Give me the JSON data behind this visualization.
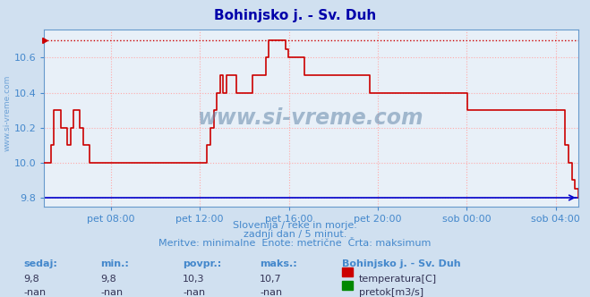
{
  "title": "Bohinjsko j. - Sv. Duh",
  "title_color": "#0000aa",
  "bg_color": "#d0e0f0",
  "plot_bg_color": "#e8f0f8",
  "grid_color": "#ffaaaa",
  "grid_style": ":",
  "y_min": 9.75,
  "y_max": 10.76,
  "y_ticks": [
    9.8,
    10.0,
    10.2,
    10.4,
    10.6
  ],
  "x_ticks_labels": [
    "pet 08:00",
    "pet 12:00",
    "pet 16:00",
    "pet 20:00",
    "sob 00:00",
    "sob 04:00"
  ],
  "x_ticks_pos": [
    0.125,
    0.291,
    0.458,
    0.625,
    0.791,
    0.958
  ],
  "max_line_y": 10.7,
  "max_line_color": "#cc0000",
  "bottom_line_y": 9.8,
  "bottom_line_color": "#0000cc",
  "temp_line_color": "#cc0000",
  "label_color": "#4488cc",
  "spine_color": "#6699cc",
  "footer_text1": "Slovenija / reke in morje.",
  "footer_text2": "zadnji dan / 5 minut.",
  "footer_text3": "Meritve: minimalne  Enote: metrične  Črta: maksimum",
  "stats_label1": "sedaj:",
  "stats_label2": "min.:",
  "stats_label3": "povpr.:",
  "stats_label4": "maks.:",
  "stats_val1": "9,8",
  "stats_val2": "9,8",
  "stats_val3": "10,3",
  "stats_val4": "10,7",
  "stats_station": "Bohinjsko j. - Sv. Duh",
  "legend1": "temperatura[C]",
  "legend2": "pretok[m3/s]",
  "legend_color1": "#cc0000",
  "legend_color2": "#008800",
  "watermark": "www.si-vreme.com",
  "temp_data": [
    10.0,
    10.0,
    10.1,
    10.3,
    10.3,
    10.2,
    10.2,
    10.1,
    10.2,
    10.3,
    10.3,
    10.2,
    10.1,
    10.1,
    10.0,
    10.0,
    10.0,
    10.0,
    10.0,
    10.0,
    10.0,
    10.0,
    10.0,
    10.0,
    10.0,
    10.0,
    10.0,
    10.0,
    10.0,
    10.0,
    10.0,
    10.0,
    10.0,
    10.0,
    10.0,
    10.0,
    10.0,
    10.0,
    10.0,
    10.0,
    10.0,
    10.0,
    10.0,
    10.0,
    10.0,
    10.0,
    10.0,
    10.0,
    10.0,
    10.0,
    10.1,
    10.2,
    10.3,
    10.4,
    10.5,
    10.4,
    10.5,
    10.5,
    10.5,
    10.4,
    10.4,
    10.4,
    10.4,
    10.4,
    10.5,
    10.5,
    10.5,
    10.5,
    10.6,
    10.7,
    10.7,
    10.7,
    10.7,
    10.7,
    10.65,
    10.6,
    10.6,
    10.6,
    10.6,
    10.6,
    10.5,
    10.5,
    10.5,
    10.5,
    10.5,
    10.5,
    10.5,
    10.5,
    10.5,
    10.5,
    10.5,
    10.5,
    10.5,
    10.5,
    10.5,
    10.5,
    10.5,
    10.5,
    10.5,
    10.5,
    10.4,
    10.4,
    10.4,
    10.4,
    10.4,
    10.4,
    10.4,
    10.4,
    10.4,
    10.4,
    10.4,
    10.4,
    10.4,
    10.4,
    10.4,
    10.4,
    10.4,
    10.4,
    10.4,
    10.4,
    10.4,
    10.4,
    10.4,
    10.4,
    10.4,
    10.4,
    10.4,
    10.4,
    10.4,
    10.4,
    10.3,
    10.3,
    10.3,
    10.3,
    10.3,
    10.3,
    10.3,
    10.3,
    10.3,
    10.3,
    10.3,
    10.3,
    10.3,
    10.3,
    10.3,
    10.3,
    10.3,
    10.3,
    10.3,
    10.3,
    10.3,
    10.3,
    10.3,
    10.3,
    10.3,
    10.3,
    10.3,
    10.3,
    10.3,
    10.3,
    10.1,
    10.0,
    9.9,
    9.85,
    9.8
  ]
}
